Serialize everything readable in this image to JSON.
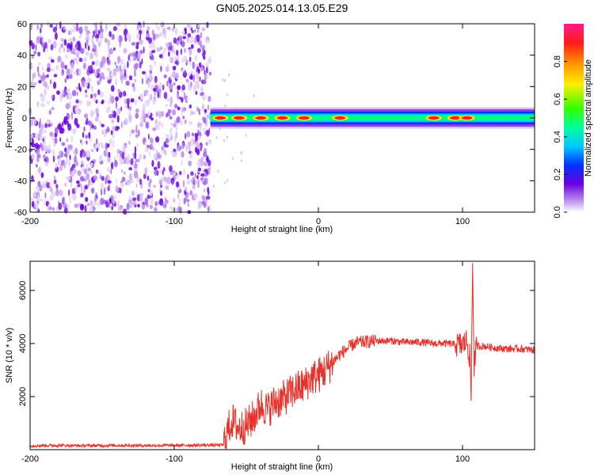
{
  "title": "GN05.2025.014.13.05.E29",
  "chart_data": [
    {
      "type": "heatmap",
      "xlabel": "Height of straight line (km)",
      "ylabel": "Frequency (Hz)",
      "xlim": [
        -200,
        150
      ],
      "ylim": [
        -60,
        60
      ],
      "xticks": [
        -200,
        -100,
        0,
        100
      ],
      "yticks": [
        -60,
        -40,
        -20,
        0,
        20,
        40,
        60
      ],
      "colorbar": {
        "label": "Normalized spectral amplitude",
        "range": [
          0.0,
          1.0
        ],
        "ticks": [
          0.0,
          0.2,
          0.4,
          0.6,
          0.8
        ]
      },
      "noise_region_km": [
        -200,
        -75
      ],
      "signal_band": {
        "x_range_km": [
          -75,
          150
        ],
        "center_hz": 0,
        "halfwidth_hz": 5,
        "peaks_km": [
          -68,
          -55,
          -40,
          -25,
          -10,
          15,
          80,
          95,
          103
        ]
      }
    },
    {
      "type": "line",
      "xlabel": "Height of straight line (km)",
      "ylabel": "SNR (10 * v/v)",
      "xlim": [
        -200,
        150
      ],
      "ylim": [
        0,
        7100
      ],
      "xticks": [
        -200,
        -100,
        0,
        100
      ],
      "yticks": [
        2000,
        4000,
        6000
      ],
      "line_color": "#e8312a",
      "series": [
        {
          "x": [
            -200,
            -180,
            -160,
            -140,
            -120,
            -100,
            -80,
            -70,
            -66,
            -63,
            -60,
            -55,
            -50,
            -45,
            -40,
            -35,
            -30,
            -25,
            -20,
            -15,
            -10,
            -5,
            0,
            5,
            10,
            15,
            20,
            25,
            30,
            40,
            50,
            60,
            70,
            80,
            90,
            95,
            100,
            103,
            105,
            106,
            107,
            108,
            110,
            115,
            120,
            130,
            140,
            150
          ],
          "y": [
            150,
            160,
            150,
            160,
            155,
            160,
            170,
            170,
            180,
            700,
            1100,
            800,
            900,
            1200,
            1700,
            1500,
            1800,
            1900,
            2100,
            2300,
            2400,
            2700,
            2800,
            3000,
            3300,
            3600,
            3800,
            4000,
            4050,
            4100,
            4100,
            4050,
            4050,
            4000,
            4000,
            3950,
            3950,
            4100,
            3500,
            2000,
            7100,
            3200,
            3900,
            3900,
            3850,
            3800,
            3800,
            3750
          ]
        }
      ]
    }
  ]
}
